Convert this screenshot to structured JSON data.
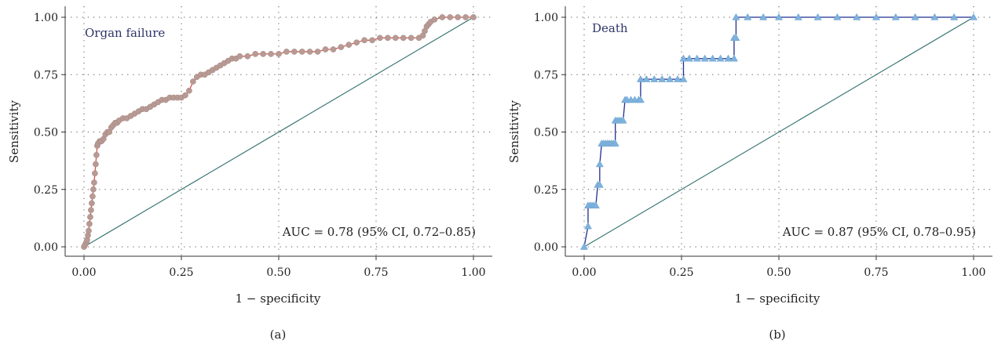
{
  "chart_data": [
    {
      "type": "line",
      "panel_label": "(a)",
      "title": "Organ failure",
      "xlabel": "1 − specificity",
      "ylabel": "Sensitivity",
      "annotation": "AUC = 0.78 (95% CI, 0.72–0.85)",
      "xlim": [
        0,
        1
      ],
      "ylim": [
        0,
        1
      ],
      "xticks": [
        "0.00",
        "0.25",
        "0.50",
        "0.75",
        "1.00"
      ],
      "yticks": [
        "0.00",
        "0.25",
        "0.50",
        "0.75",
        "1.00"
      ],
      "grid": "dotted",
      "series": [
        {
          "marker": "circle",
          "color": "#b89a94",
          "line_color": "#d9534f",
          "x": [
            0.0,
            0.003,
            0.006,
            0.008,
            0.01,
            0.012,
            0.014,
            0.016,
            0.018,
            0.02,
            0.022,
            0.024,
            0.026,
            0.028,
            0.03,
            0.032,
            0.034,
            0.036,
            0.04,
            0.045,
            0.05,
            0.055,
            0.06,
            0.065,
            0.07,
            0.075,
            0.08,
            0.085,
            0.09,
            0.1,
            0.11,
            0.12,
            0.13,
            0.14,
            0.15,
            0.16,
            0.17,
            0.18,
            0.19,
            0.2,
            0.21,
            0.22,
            0.23,
            0.24,
            0.25,
            0.26,
            0.27,
            0.28,
            0.29,
            0.3,
            0.31,
            0.32,
            0.33,
            0.34,
            0.35,
            0.36,
            0.37,
            0.38,
            0.39,
            0.4,
            0.42,
            0.44,
            0.46,
            0.48,
            0.5,
            0.52,
            0.54,
            0.56,
            0.58,
            0.6,
            0.62,
            0.64,
            0.66,
            0.68,
            0.7,
            0.72,
            0.74,
            0.76,
            0.78,
            0.8,
            0.82,
            0.84,
            0.86,
            0.87,
            0.875,
            0.88,
            0.885,
            0.89,
            0.9,
            0.92,
            0.94,
            0.96,
            0.98,
            1.0
          ],
          "y": [
            0.0,
            0.01,
            0.02,
            0.03,
            0.05,
            0.07,
            0.1,
            0.13,
            0.16,
            0.19,
            0.22,
            0.25,
            0.28,
            0.32,
            0.36,
            0.4,
            0.44,
            0.45,
            0.46,
            0.46,
            0.47,
            0.49,
            0.5,
            0.5,
            0.52,
            0.53,
            0.54,
            0.54,
            0.55,
            0.56,
            0.56,
            0.57,
            0.58,
            0.59,
            0.6,
            0.6,
            0.61,
            0.62,
            0.63,
            0.64,
            0.64,
            0.65,
            0.65,
            0.65,
            0.65,
            0.66,
            0.68,
            0.72,
            0.74,
            0.75,
            0.75,
            0.76,
            0.77,
            0.78,
            0.79,
            0.8,
            0.81,
            0.82,
            0.82,
            0.83,
            0.83,
            0.84,
            0.84,
            0.84,
            0.84,
            0.85,
            0.85,
            0.85,
            0.85,
            0.85,
            0.86,
            0.86,
            0.87,
            0.88,
            0.89,
            0.9,
            0.9,
            0.91,
            0.91,
            0.91,
            0.91,
            0.91,
            0.91,
            0.92,
            0.94,
            0.96,
            0.97,
            0.98,
            0.99,
            1.0,
            1.0,
            1.0,
            1.0,
            1.0
          ]
        },
        {
          "name": "reference",
          "type": "line",
          "color": "#2f6f6b",
          "x": [
            0,
            1
          ],
          "y": [
            0,
            1
          ]
        }
      ]
    },
    {
      "type": "line",
      "panel_label": "(b)",
      "title": "Death",
      "xlabel": "1 − specificity",
      "ylabel": "Sensitivity",
      "annotation": "AUC = 0.87 (95% CI, 0.78–0.95)",
      "xlim": [
        0,
        1
      ],
      "ylim": [
        0,
        1
      ],
      "xticks": [
        "0.00",
        "0.25",
        "0.50",
        "0.75",
        "1.00"
      ],
      "yticks": [
        "0.00",
        "0.25",
        "0.50",
        "0.75",
        "1.00"
      ],
      "grid": "dotted",
      "series": [
        {
          "marker": "triangle",
          "color": "#7fb2dc",
          "line_color": "#1f2f8f",
          "x": [
            0.0,
            0.01,
            0.01,
            0.015,
            0.02,
            0.025,
            0.03,
            0.035,
            0.04,
            0.04,
            0.045,
            0.05,
            0.055,
            0.06,
            0.065,
            0.07,
            0.075,
            0.08,
            0.08,
            0.085,
            0.09,
            0.095,
            0.1,
            0.105,
            0.11,
            0.11,
            0.12,
            0.13,
            0.14,
            0.145,
            0.145,
            0.16,
            0.18,
            0.2,
            0.22,
            0.24,
            0.255,
            0.255,
            0.27,
            0.29,
            0.31,
            0.33,
            0.35,
            0.37,
            0.385,
            0.385,
            0.39,
            0.39,
            0.42,
            0.46,
            0.5,
            0.55,
            0.6,
            0.65,
            0.7,
            0.75,
            0.8,
            0.85,
            0.9,
            0.95,
            1.0
          ],
          "y": [
            0.0,
            0.09,
            0.18,
            0.18,
            0.18,
            0.18,
            0.18,
            0.27,
            0.27,
            0.36,
            0.45,
            0.45,
            0.45,
            0.45,
            0.45,
            0.45,
            0.45,
            0.45,
            0.55,
            0.55,
            0.55,
            0.55,
            0.55,
            0.64,
            0.64,
            0.64,
            0.64,
            0.64,
            0.64,
            0.64,
            0.73,
            0.73,
            0.73,
            0.73,
            0.73,
            0.73,
            0.73,
            0.82,
            0.82,
            0.82,
            0.82,
            0.82,
            0.82,
            0.82,
            0.82,
            0.91,
            0.91,
            1.0,
            1.0,
            1.0,
            1.0,
            1.0,
            1.0,
            1.0,
            1.0,
            1.0,
            1.0,
            1.0,
            1.0,
            1.0,
            1.0
          ]
        },
        {
          "name": "reference",
          "type": "line",
          "color": "#2f6f6b",
          "x": [
            0,
            1
          ],
          "y": [
            0,
            1
          ]
        }
      ]
    }
  ]
}
